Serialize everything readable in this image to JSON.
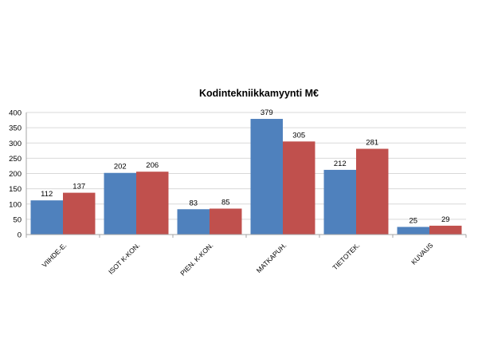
{
  "chart_data": {
    "type": "bar",
    "title": "Kodintekniikkamyynti M€",
    "xlabel": "",
    "ylabel": "",
    "categories": [
      "VIIHDE-E.",
      "ISOT K-KON.",
      "PIEN. K-KON.",
      "MATKAPUH.",
      "TIETOTEK.",
      "KUVAUS"
    ],
    "series": [
      {
        "values": [
          112,
          202,
          83,
          379,
          212,
          25
        ],
        "color": "#4f81bd"
      },
      {
        "values": [
          137,
          206,
          85,
          305,
          281,
          29
        ],
        "color": "#c0504d"
      }
    ],
    "ylim": [
      0,
      400
    ],
    "yticks": [
      0,
      50,
      100,
      150,
      200,
      250,
      300,
      350,
      400
    ],
    "grid": true,
    "legend": "none",
    "data_labels": true
  }
}
